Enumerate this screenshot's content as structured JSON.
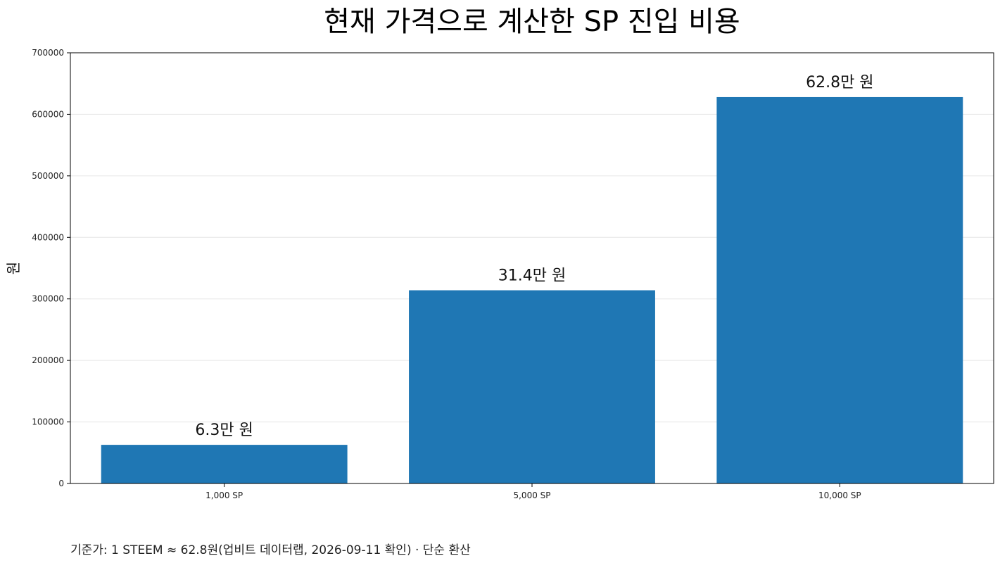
{
  "chart_data": {
    "type": "bar",
    "title": "현재 가격으로 계산한 SP 진입 비용",
    "xlabel": "",
    "ylabel": "원",
    "categories": [
      "1,000 SP",
      "5,000 SP",
      "10,000 SP"
    ],
    "values": [
      62800,
      314000,
      628000
    ],
    "data_labels": [
      "6.3만 원",
      "31.4만 원",
      "62.8만 원"
    ],
    "ylim": [
      0,
      700000
    ],
    "yticks": [
      "0",
      "100000",
      "200000",
      "300000",
      "400000",
      "500000",
      "600000",
      "700000"
    ],
    "grid": "horizontal",
    "legend": "none",
    "bar_color": "#1f77b4"
  },
  "footnote": "기준가: 1 STEEM ≈ 62.8원(업비트 데이터랩, 2026-09-11 확인) · 단순 환산"
}
